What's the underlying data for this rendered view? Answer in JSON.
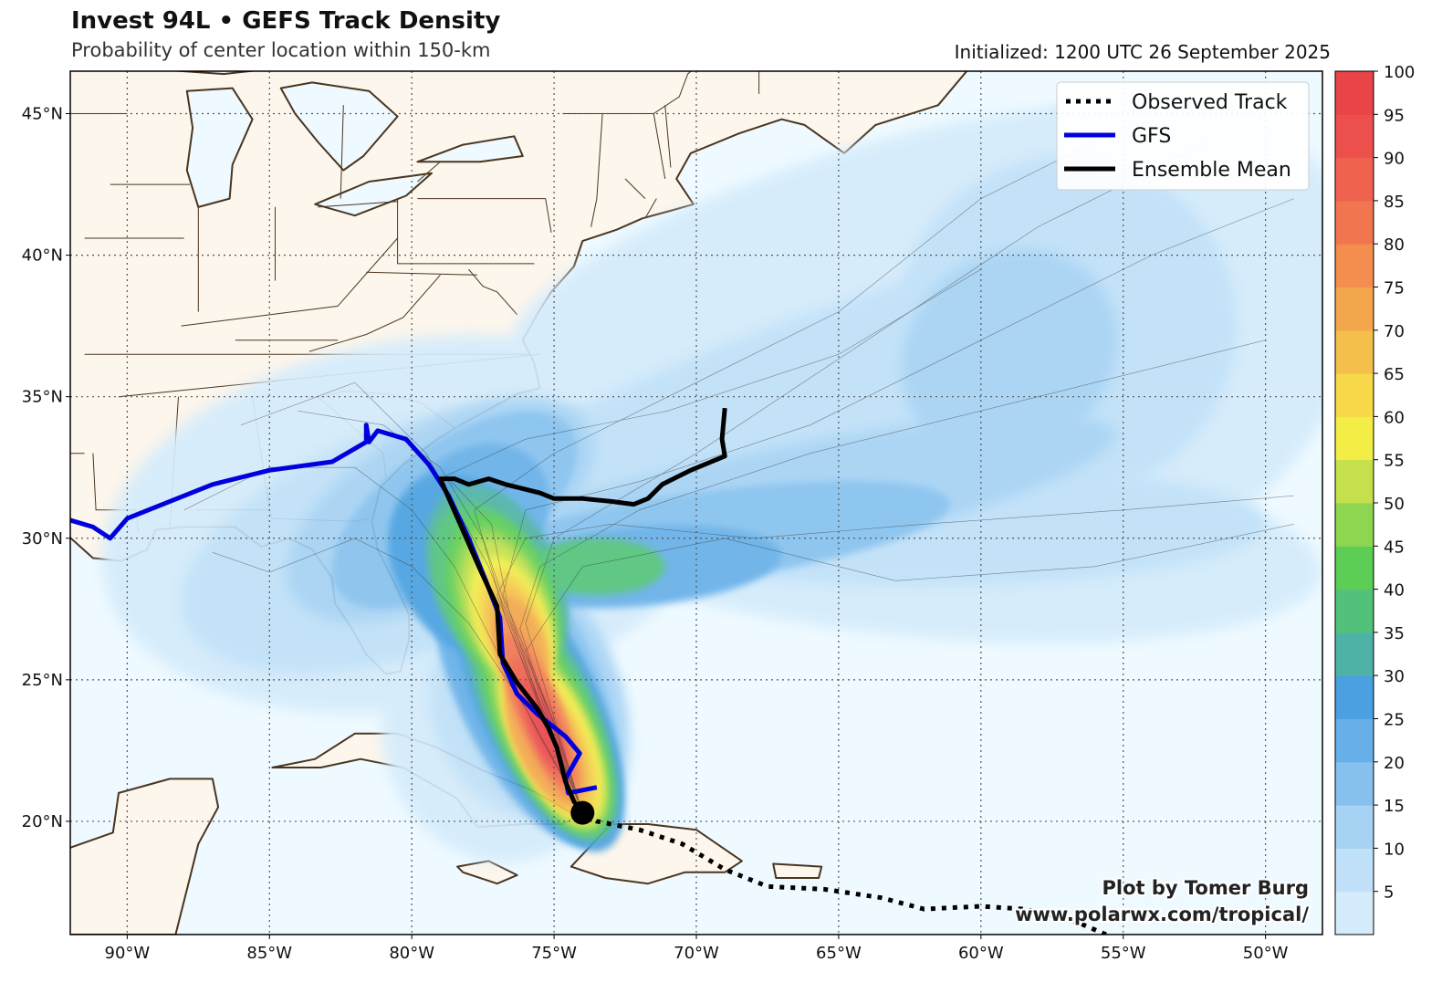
{
  "header": {
    "title": "Invest 94L • GEFS Track Density",
    "subtitle": "Probability of center location within 150-km",
    "initialized": "Initialized: 1200 UTC 26 September 2025"
  },
  "map": {
    "lon_range": [
      -92,
      -48
    ],
    "lat_range": [
      16,
      46.5
    ],
    "lon_ticks": [
      {
        "value": -90,
        "label": "90°W"
      },
      {
        "value": -85,
        "label": "85°W"
      },
      {
        "value": -80,
        "label": "80°W"
      },
      {
        "value": -75,
        "label": "75°W"
      },
      {
        "value": -70,
        "label": "70°W"
      },
      {
        "value": -65,
        "label": "65°W"
      },
      {
        "value": -60,
        "label": "60°W"
      },
      {
        "value": -55,
        "label": "55°W"
      },
      {
        "value": -50,
        "label": "50°W"
      }
    ],
    "lat_ticks": [
      {
        "value": 20,
        "label": "20°N"
      },
      {
        "value": 25,
        "label": "25°N"
      },
      {
        "value": 30,
        "label": "30°N"
      },
      {
        "value": 35,
        "label": "35°N"
      },
      {
        "value": 40,
        "label": "40°N"
      },
      {
        "value": 45,
        "label": "45°N"
      }
    ],
    "colors": {
      "ocean": "#eefaff",
      "land": "#fcf6ec",
      "coast": "#4a3520",
      "grid": "#555555"
    }
  },
  "legend": {
    "items": [
      {
        "label": "Observed Track",
        "style": "dotted",
        "color": "#000000"
      },
      {
        "label": "GFS",
        "style": "solid",
        "color": "#0000dd"
      },
      {
        "label": "Ensemble Mean",
        "style": "solid",
        "color": "#000000"
      }
    ]
  },
  "tracks": {
    "observed": [
      [
        -55.6,
        16.0
      ],
      [
        -57.0,
        16.6
      ],
      [
        -58.5,
        16.9
      ],
      [
        -60.0,
        17.0
      ],
      [
        -62.0,
        16.9
      ],
      [
        -63.5,
        17.3
      ],
      [
        -65.5,
        17.6
      ],
      [
        -67.5,
        17.7
      ],
      [
        -69.0,
        18.3
      ],
      [
        -70.5,
        19.2
      ],
      [
        -72.0,
        19.7
      ],
      [
        -73.5,
        20.0
      ],
      [
        -74.0,
        20.3
      ]
    ],
    "gfs": [
      [
        -92.2,
        30.7
      ],
      [
        -91.2,
        30.4
      ],
      [
        -90.6,
        30.0
      ],
      [
        -90.0,
        30.7
      ],
      [
        -88.5,
        31.3
      ],
      [
        -87.0,
        31.9
      ],
      [
        -85.0,
        32.4
      ],
      [
        -82.8,
        32.7
      ],
      [
        -81.6,
        33.4
      ],
      [
        -81.6,
        34.0
      ],
      [
        -81.5,
        33.4
      ],
      [
        -81.2,
        33.8
      ],
      [
        -80.2,
        33.5
      ],
      [
        -79.4,
        32.6
      ],
      [
        -78.7,
        31.5
      ],
      [
        -78.0,
        30.0
      ],
      [
        -77.4,
        28.5
      ],
      [
        -76.9,
        27.2
      ],
      [
        -76.8,
        25.6
      ],
      [
        -76.3,
        24.5
      ],
      [
        -75.6,
        23.8
      ],
      [
        -74.6,
        23.0
      ],
      [
        -74.1,
        22.4
      ],
      [
        -74.6,
        21.5
      ],
      [
        -74.5,
        21.0
      ],
      [
        -73.5,
        21.2
      ]
    ],
    "ensemble_mean": [
      [
        -69.0,
        34.6
      ],
      [
        -69.1,
        33.5
      ],
      [
        -69.0,
        32.9
      ],
      [
        -70.2,
        32.4
      ],
      [
        -71.2,
        31.9
      ],
      [
        -71.7,
        31.4
      ],
      [
        -72.2,
        31.2
      ],
      [
        -73.0,
        31.3
      ],
      [
        -74.0,
        31.4
      ],
      [
        -75.0,
        31.4
      ],
      [
        -75.5,
        31.6
      ],
      [
        -76.7,
        31.9
      ],
      [
        -77.3,
        32.1
      ],
      [
        -78.0,
        31.9
      ],
      [
        -78.5,
        32.1
      ],
      [
        -79.0,
        32.1
      ],
      [
        -78.3,
        30.5
      ],
      [
        -77.6,
        28.9
      ],
      [
        -77.0,
        27.6
      ],
      [
        -76.9,
        25.9
      ],
      [
        -76.3,
        24.9
      ],
      [
        -75.6,
        24.0
      ],
      [
        -75.2,
        23.3
      ],
      [
        -74.9,
        22.6
      ],
      [
        -74.6,
        21.4
      ],
      [
        -74.3,
        20.7
      ],
      [
        -74.0,
        20.3
      ]
    ],
    "current_position": [
      -74.0,
      20.3
    ]
  },
  "density": {
    "levels": [
      5,
      10,
      15,
      20,
      25,
      30,
      35,
      40,
      45,
      50,
      55,
      60,
      65,
      70,
      75,
      80,
      85,
      90,
      95,
      100
    ],
    "colors": [
      "#d4ebfb",
      "#bfe0f8",
      "#a6d2f4",
      "#86c1ee",
      "#66afe8",
      "#4aa0e0",
      "#4fb2a6",
      "#52c27a",
      "#5ccd55",
      "#8ed550",
      "#c4e04c",
      "#f2ee46",
      "#f6d848",
      "#f4bf4a",
      "#f3a64c",
      "#f38e4e",
      "#f1764f",
      "#ef624e",
      "#ec4f4c",
      "#e94448"
    ]
  },
  "colorbar": {
    "ticks": [
      "5",
      "10",
      "15",
      "20",
      "25",
      "30",
      "35",
      "40",
      "45",
      "50",
      "55",
      "60",
      "65",
      "70",
      "75",
      "80",
      "85",
      "90",
      "95",
      "100"
    ]
  },
  "credit": {
    "line1": "Plot by Tomer Burg",
    "line2": "www.polarwx.com/tropical/"
  }
}
